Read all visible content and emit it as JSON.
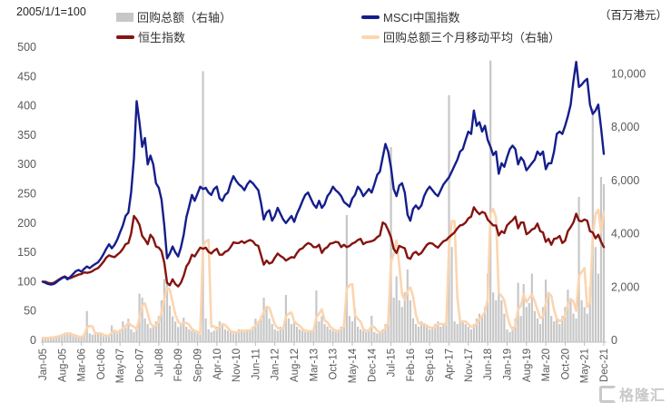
{
  "header": {
    "left_note": "2005/1/1=100",
    "right_unit": "（百万港元）"
  },
  "legend": {
    "items": [
      {
        "label": "回购总额（右轴）",
        "type": "bar",
        "color": "#c7c7c7"
      },
      {
        "label": "MSCI中国指数",
        "type": "line",
        "color": "#141e8c"
      },
      {
        "label": "恒生指数",
        "type": "line",
        "color": "#841410"
      },
      {
        "label": "回购总额三个月移动平均（右轴）",
        "type": "line",
        "color": "#fbd5b0"
      }
    ]
  },
  "watermark": {
    "text": "格隆汇"
  },
  "chart_data": {
    "type": "combo: bar + line",
    "title": "2005/1/1=100",
    "x_start": "2005-01",
    "x_end": "2021-12",
    "x_frequency": "monthly",
    "x_axis": {
      "tick_every_n_months": 7,
      "tick_labels": [
        "Jan-05",
        "Aug-05",
        "Mar-06",
        "Oct-06",
        "May-07",
        "Dec-07",
        "Jul-08",
        "Feb-09",
        "Sep-09",
        "Apr-10",
        "Nov-10",
        "Jun-11",
        "Jan-12",
        "Aug-12",
        "Mar-13",
        "Oct-13",
        "May-14",
        "Dec-14",
        "Jul-15",
        "Feb-16",
        "Sep-16",
        "Apr-17",
        "Nov-17",
        "Jun-18",
        "Jan-19",
        "Aug-19",
        "Mar-20",
        "Oct-20",
        "May-21",
        "Dec-21"
      ]
    },
    "left_axis": {
      "title": "2005/1/1=100",
      "min": 0,
      "max": 500,
      "step": 50,
      "tick_values": [
        0,
        50,
        100,
        150,
        200,
        250,
        300,
        350,
        400,
        450,
        500
      ],
      "tick_labels": [
        "0",
        "50",
        "100",
        "150",
        "200",
        "250",
        "300",
        "350",
        "400",
        "450",
        "500"
      ]
    },
    "right_axis": {
      "title": "（百万港元）",
      "min": 0,
      "scale_max": 11000,
      "label_step": 2000,
      "tick_values": [
        0,
        2000,
        4000,
        6000,
        8000,
        10000
      ],
      "tick_labels": [
        "0",
        "2,000",
        "4,000",
        "6,000",
        "8,000",
        "10,000"
      ]
    },
    "grid": "off",
    "legend_position": "top",
    "series": {
      "buyback": {
        "name": "回购总额（右轴）",
        "type": "bar",
        "axis": "right",
        "color": "#c7c7c7",
        "values": [
          110,
          70,
          90,
          130,
          110,
          160,
          190,
          230,
          290,
          260,
          210,
          160,
          130,
          110,
          160,
          260,
          1100,
          260,
          210,
          310,
          260,
          210,
          160,
          150,
          210,
          560,
          310,
          260,
          410,
          710,
          460,
          810,
          410,
          310,
          510,
          1750,
          1600,
          820,
          610,
          460,
          510,
          710,
          910,
          1500,
          2300,
          2100,
          1300,
          900,
          700,
          500,
          610,
          850,
          510,
          410,
          360,
          310,
          260,
          210,
          10100,
          820,
          410,
          310,
          360,
          510,
          710,
          610,
          410,
          360,
          310,
          260,
          310,
          410,
          360,
          310,
          410,
          360,
          510,
          810,
          710,
          910,
          1600,
          1250,
          810,
          610,
          410,
          360,
          510,
          460,
          1700,
          820,
          610,
          710,
          510,
          410,
          360,
          310,
          360,
          310,
          410,
          1870,
          710,
          910,
          610,
          510,
          410,
          360,
          310,
          410,
          510,
          610,
          4700,
          910,
          710,
          1200,
          510,
          410,
          360,
          310,
          410,
          920,
          310,
          260,
          310,
          410,
          610,
          910,
          7250,
          1600,
          2400,
          1500,
          1250,
          1800,
          2660,
          1500,
          820,
          610,
          510,
          710,
          610,
          510,
          410,
          510,
          610,
          710,
          510,
          610,
          710,
          9200,
          3500,
          710,
          610,
          810,
          710,
          610,
          510,
          410,
          610,
          810,
          1000,
          910,
          1250,
          2500,
          10500,
          1800,
          1500,
          2000,
          1500,
          1000,
          410,
          310,
          510,
          820,
          2160,
          910,
          2110,
          1250,
          1400,
          2500,
          1100,
          820,
          610,
          1250,
          2280,
          1810,
          910,
          710,
          820,
          610,
          910,
          1250,
          1900,
          1500,
          1000,
          820,
          5380,
          1500,
          1250,
          1000,
          2000,
          8700,
          3500,
          2500,
          6130,
          5860
        ]
      },
      "buyback_ma": {
        "name": "回购总额三个月移动平均（右轴）",
        "type": "line",
        "axis": "right",
        "color": "#fbd5b0",
        "values": [
          90,
          90,
          90,
          110,
          110,
          135,
          155,
          195,
          235,
          260,
          255,
          210,
          175,
          135,
          135,
          175,
          475,
          540,
          525,
          260,
          260,
          260,
          210,
          175,
          175,
          285,
          360,
          310,
          325,
          460,
          525,
          660,
          560,
          510,
          410,
          855,
          1285,
          1390,
          1010,
          630,
          525,
          560,
          710,
          1040,
          1570,
          1965,
          1900,
          1435,
          965,
          700,
          605,
          655,
          655,
          590,
          425,
          360,
          310,
          260,
          3525,
          3710,
          3775,
          510,
          530,
          395,
          525,
          610,
          575,
          460,
          345,
          310,
          295,
          325,
          360,
          360,
          360,
          375,
          425,
          560,
          675,
          810,
          1075,
          1255,
          1220,
          890,
          595,
          460,
          425,
          445,
          890,
          995,
          1045,
          715,
          610,
          545,
          425,
          360,
          345,
          345,
          360,
          860,
          995,
          1165,
          745,
          675,
          510,
          425,
          360,
          360,
          410,
          510,
          1935,
          2075,
          2105,
          940,
          805,
          705,
          425,
          360,
          360,
          545,
          495,
          365,
          295,
          325,
          445,
          645,
          2925,
          3255,
          3750,
          2835,
          1715,
          1515,
          1855,
          1985,
          1660,
          975,
          645,
          610,
          610,
          545,
          475,
          475,
          510,
          610,
          610,
          610,
          610,
          3475,
          4470,
          4470,
          1605,
          710,
          710,
          710,
          610,
          510,
          510,
          640,
          805,
          905,
          1055,
          1555,
          4750,
          4935,
          4600,
          1770,
          1665,
          1500,
          975,
          580,
          410,
          545,
          1165,
          1295,
          1725,
          1425,
          1585,
          1715,
          1470,
          1140,
          840,
          890,
          1380,
          1780,
          1665,
          1145,
          815,
          715,
          780,
          925,
          1350,
          1550,
          1465,
          1105,
          2400,
          2565,
          2710,
          1250,
          1415,
          3900,
          4735,
          4900,
          4045,
          4830
        ]
      },
      "hsi": {
        "name": "恒生指数",
        "type": "line",
        "axis": "left",
        "color": "#841410",
        "values": [
          100,
          100,
          98,
          97,
          98,
          101,
          104,
          107,
          109,
          106,
          106,
          108,
          110,
          112,
          113,
          116,
          115,
          116,
          118,
          121,
          123,
          128,
          134,
          141,
          145,
          143,
          142,
          146,
          150,
          156,
          164,
          166,
          182,
          212,
          206,
          197,
          178,
          172,
          164,
          180,
          174,
          160,
          158,
          152,
          132,
          98,
          94,
          104,
          96,
          92,
          98,
          110,
          126,
          133,
          146,
          143,
          151,
          158,
          156,
          158,
          151,
          148,
          153,
          156,
          146,
          146,
          151,
          153,
          159,
          167,
          166,
          166,
          169,
          166,
          169,
          171,
          169,
          163,
          161,
          145,
          129,
          136,
          131,
          133,
          141,
          148,
          144,
          141,
          136,
          139,
          142,
          141,
          149,
          155,
          157,
          162,
          166,
          164,
          159,
          159,
          163,
          149,
          156,
          159,
          165,
          166,
          168,
          167,
          159,
          163,
          159,
          161,
          165,
          167,
          171,
          173,
          164,
          167,
          168,
          169,
          171,
          176,
          179,
          201,
          198,
          188,
          176,
          156,
          149,
          161,
          159,
          157,
          141,
          139,
          148,
          151,
          146,
          149,
          156,
          163,
          166,
          165,
          161,
          158,
          164,
          169,
          171,
          176,
          180,
          184,
          191,
          196,
          197,
          201,
          208,
          211,
          227,
          220,
          215,
          219,
          217,
          206,
          201,
          196,
          196,
          179,
          186,
          183,
          196,
          201,
          205,
          211,
          191,
          201,
          201,
          181,
          184,
          189,
          191,
          199,
          186,
          184,
          168,
          173,
          163,
          173,
          174,
          178,
          166,
          170,
          186,
          193,
          201,
          216,
          204,
          203,
          206,
          204,
          186,
          184,
          174,
          180,
          168,
          159
        ]
      },
      "msci": {
        "name": "MSCI中国指数",
        "type": "line",
        "axis": "left",
        "color": "#141e8c",
        "values": [
          100,
          98,
          96,
          95,
          96,
          99,
          103,
          106,
          108,
          104,
          108,
          113,
          118,
          120,
          117,
          122,
          126,
          123,
          127,
          130,
          133,
          139,
          147,
          156,
          164,
          157,
          163,
          172,
          184,
          196,
          212,
          218,
          252,
          310,
          408,
          372,
          330,
          345,
          300,
          315,
          300,
          268,
          260,
          240,
          195,
          140,
          148,
          160,
          150,
          143,
          158,
          180,
          210,
          228,
          248,
          238,
          250,
          262,
          258,
          260,
          252,
          248,
          258,
          262,
          242,
          238,
          248,
          252,
          268,
          280,
          272,
          266,
          262,
          256,
          266,
          272,
          268,
          262,
          256,
          234,
          206,
          218,
          222,
          204,
          212,
          226,
          216,
          206,
          200,
          206,
          212,
          202,
          216,
          226,
          238,
          248,
          252,
          242,
          232,
          226,
          238,
          226,
          232,
          246,
          252,
          262,
          256,
          252,
          246,
          236,
          232,
          228,
          242,
          248,
          262,
          256,
          246,
          252,
          258,
          252,
          266,
          282,
          288,
          312,
          335,
          322,
          295,
          258,
          246,
          264,
          268,
          252,
          214,
          204,
          224,
          230,
          224,
          230,
          246,
          256,
          262,
          256,
          250,
          246,
          256,
          266,
          272,
          278,
          288,
          298,
          308,
          322,
          326,
          342,
          356,
          352,
          392,
          366,
          372,
          356,
          366,
          342,
          330,
          316,
          322,
          284,
          302,
          296,
          312,
          326,
          332,
          326,
          300,
          312,
          306,
          290,
          296,
          302,
          308,
          322,
          316,
          322,
          292,
          302,
          302,
          322,
          352,
          356,
          352,
          366,
          382,
          402,
          442,
          475,
          432,
          436,
          442,
          446,
          402,
          386,
          392,
          402,
          362,
          318
        ]
      }
    }
  }
}
